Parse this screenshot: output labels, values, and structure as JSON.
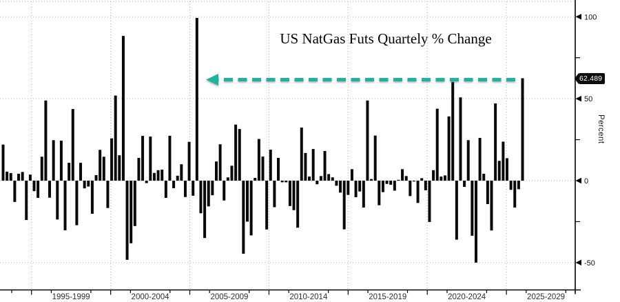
{
  "title": "US NatGas Futs Quartely % Change",
  "y_axis": {
    "label": "Percent",
    "major_ticks": [
      {
        "label": "100",
        "value": 100
      },
      {
        "label": "50",
        "value": 50
      },
      {
        "label": "0",
        "value": 0
      },
      {
        "label": "-50",
        "value": -50
      }
    ],
    "minor_tick_values": [
      75,
      25,
      -25
    ]
  },
  "x_axis": {
    "period_labels": [
      "1995-1999",
      "2000-2004",
      "2005-2009",
      "2010-2014",
      "2015-2019",
      "2020-2024",
      "2025-2029"
    ]
  },
  "last_value_badge": {
    "text": "62.489",
    "bg": "#0d0d0d",
    "fg": "#ffffff"
  },
  "annotation_arrow": {
    "color": "#1DB3A0",
    "value": 62.489,
    "direction": "left"
  },
  "chart_data": {
    "type": "bar",
    "title": "US NatGas Futs Quartely % Change",
    "xlabel": "",
    "ylabel": "Percent",
    "ylim": [
      -62,
      108
    ],
    "grid": true,
    "bar_color": "#080808",
    "x_period_labels": [
      "1995-1999",
      "2000-2004",
      "2005-2009",
      "2010-2014",
      "2015-2019",
      "2020-2024",
      "2025-2029"
    ],
    "values": [
      22,
      5.5,
      4.6,
      -13,
      4.2,
      5.3,
      -24,
      3.7,
      -6.4,
      -10.5,
      14.6,
      48.9,
      -10.4,
      24.7,
      -23.7,
      24.4,
      -30.3,
      10.9,
      43.7,
      -27.2,
      10.9,
      -4.7,
      -3.6,
      -20.2,
      3.4,
      18.8,
      14.6,
      -16.7,
      25.8,
      51.9,
      15.5,
      88.3,
      -48.3,
      -38.2,
      -27.7,
      13.9,
      27.3,
      -1.5,
      26.9,
      4.7,
      6.4,
      6.7,
      -10.5,
      27.4,
      -4.6,
      3.0,
      10.0,
      -10.0,
      23.7,
      -9.2,
      99.3,
      -19.9,
      -35.0,
      -15.7,
      -8.9,
      11.7,
      22.2,
      -12.1,
      2.0,
      9.1,
      34.2,
      31.5,
      -44.6,
      -25.0,
      -33.4,
      1.7,
      25.4,
      14.7,
      -29.8,
      18.9,
      -16.2,
      13.9,
      -1.0,
      -1.0,
      -15.5,
      -18.0,
      -28.7,
      32.4,
      16.9,
      2.5,
      19.3,
      -2.2,
      2.8,
      18.1,
      4.0,
      2.0,
      -3.1,
      -7.3,
      -29.7,
      -8.7,
      7.0,
      -10.1,
      -6.6,
      -16.4,
      48.9,
      1.0,
      27.5,
      -15.0,
      -7.0,
      -2.0,
      -2.5,
      -6.1,
      0.5,
      7.0,
      2.8,
      -9.4,
      -0.5,
      -13.6,
      1.5,
      -5.9,
      -25.2,
      6.4,
      43.9,
      2.5,
      3.2,
      39.2,
      60.3,
      -36.0,
      50.8,
      -3.8,
      24.7,
      -33.6,
      -50.0,
      26.1,
      4.2,
      -14.3,
      -30.4,
      47.1,
      12.1,
      23.8,
      13.7,
      -5.6,
      -16.4,
      -5.2,
      62.489
    ],
    "last_value_label": "62.489"
  }
}
